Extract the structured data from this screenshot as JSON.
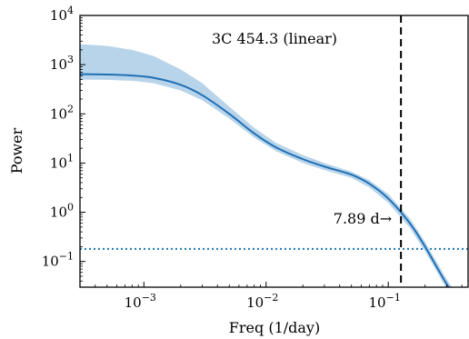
{
  "chart_data": {
    "type": "line",
    "title": "",
    "annotation_title": "3C 454.3 (linear)",
    "xlabel": "Freq (1/day)",
    "ylabel": "Power",
    "x_scale": "log",
    "y_scale": "log",
    "xlim": [
      0.0003,
      0.45
    ],
    "ylim": [
      0.03,
      10000
    ],
    "x_ticks": [
      {
        "value": 0.001,
        "base": "10",
        "exp": "−3"
      },
      {
        "value": 0.01,
        "base": "10",
        "exp": "−2"
      },
      {
        "value": 0.1,
        "base": "10",
        "exp": "−1"
      }
    ],
    "y_ticks": [
      {
        "value": 0.1,
        "base": "10",
        "exp": "−1"
      },
      {
        "value": 1,
        "base": "10",
        "exp": "0"
      },
      {
        "value": 10,
        "base": "10",
        "exp": "1"
      },
      {
        "value": 100,
        "base": "10",
        "exp": "2"
      },
      {
        "value": 1000,
        "base": "10",
        "exp": "3"
      },
      {
        "value": 10000,
        "base": "10",
        "exp": "4"
      }
    ],
    "series": [
      {
        "role": "median-psd",
        "color": "#1f6fb4",
        "x": [
          0.0003,
          0.0005,
          0.0008,
          0.0012,
          0.002,
          0.003,
          0.005,
          0.008,
          0.012,
          0.02,
          0.03,
          0.05,
          0.07,
          0.1,
          0.15,
          0.2,
          0.3,
          0.4
        ],
        "y": [
          640,
          630,
          600,
          540,
          390,
          240,
          100,
          40,
          21,
          12,
          8.5,
          5.8,
          3.8,
          1.9,
          0.6,
          0.2,
          0.035,
          0.012
        ]
      }
    ],
    "band": {
      "role": "uncertainty",
      "color": "#b8d4ea",
      "x": [
        0.0003,
        0.0005,
        0.0008,
        0.0012,
        0.002,
        0.003,
        0.005,
        0.008,
        0.012,
        0.02,
        0.03,
        0.05,
        0.07,
        0.1,
        0.15,
        0.2,
        0.3,
        0.4
      ],
      "lower": [
        500,
        490,
        470,
        420,
        300,
        190,
        80,
        33,
        17.5,
        10,
        7.2,
        5.0,
        3.2,
        1.55,
        0.48,
        0.16,
        0.028,
        0.01
      ],
      "upper": [
        2600,
        2400,
        2000,
        1500,
        800,
        420,
        140,
        52,
        26,
        14.5,
        10,
        6.7,
        4.5,
        2.35,
        0.75,
        0.25,
        0.044,
        0.015
      ]
    },
    "noise_level": {
      "y": 0.18,
      "color": "#1f77b4",
      "style": "dotted"
    },
    "break_line": {
      "x": 0.127,
      "label": "7.89 d→",
      "style": "dashed",
      "color": "#000000"
    },
    "grid": false,
    "legend": "none"
  }
}
